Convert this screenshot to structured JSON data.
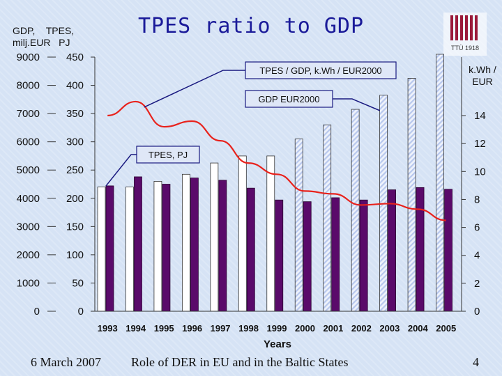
{
  "slide": {
    "title": "TPES ratio to GDP",
    "left_units": {
      "line1": "GDP,    TPES,",
      "line2": "milj.EUR   PJ"
    },
    "right_unit": "k.Wh / EUR",
    "logo_text": "TTÜ 1918",
    "footer_date": "6 March 2007",
    "footer_title": "Role of DER in EU and in the Baltic States",
    "page_number": "4"
  },
  "colors": {
    "background": "#d6e3f5",
    "gdp_bar": "#ffffff",
    "gdp_bar_hatched": "#b8c8ee",
    "tpes_bar": "#5a0a6a",
    "ratio_line": "#e8221c",
    "title": "#1a1a99"
  },
  "chart_data": {
    "type": "bar",
    "categories": [
      "1993",
      "1994",
      "1995",
      "1996",
      "1997",
      "1998",
      "1999",
      "2000",
      "2001",
      "2002",
      "2003",
      "2004",
      "2005"
    ],
    "xlabel": "Years",
    "axes": {
      "gdp_ticks": [
        "0",
        "1000",
        "2000",
        "3000",
        "4000",
        "5000",
        "6000",
        "7000",
        "8000",
        "9000"
      ],
      "tpes_ticks": [
        "0",
        "50",
        "100",
        "150",
        "200",
        "250",
        "300",
        "350",
        "400",
        "450"
      ],
      "ratio_ticks": [
        "0",
        "2",
        "4",
        "6",
        "8",
        "10",
        "12",
        "14"
      ],
      "gdp_ylim": [
        0,
        9000
      ],
      "tpes_ylim": [
        0,
        450
      ],
      "ratio_ylim": [
        0,
        14
      ]
    },
    "series": [
      {
        "name": "GDP EUR2000",
        "axis": "gdp",
        "values": [
          4400,
          4400,
          4600,
          4850,
          5250,
          5500,
          5500,
          6100,
          6600,
          7150,
          7650,
          8250,
          9100
        ]
      },
      {
        "name": "TPES, PJ",
        "axis": "tpes",
        "values": [
          222,
          238,
          225,
          236,
          232,
          218,
          197,
          194,
          201,
          197,
          215,
          219,
          216
        ]
      },
      {
        "name": "TPES / GDP, k.Wh / EUR2000",
        "axis": "ratio",
        "values": [
          14.0,
          15.0,
          13.2,
          13.6,
          12.2,
          10.6,
          9.8,
          8.6,
          8.4,
          7.6,
          7.7,
          7.3,
          6.5
        ]
      }
    ],
    "hatched_from_year": "2000",
    "annotations": [
      {
        "text": "TPES / GDP, k.Wh / EUR2000",
        "target_series": "TPES / GDP, k.Wh / EUR2000",
        "target_index": 1
      },
      {
        "text": "GDP EUR2000",
        "target_series": "GDP EUR2000",
        "target_index": 10
      },
      {
        "text": "TPES, PJ",
        "target_series": "TPES, PJ",
        "target_index": 0
      }
    ]
  }
}
